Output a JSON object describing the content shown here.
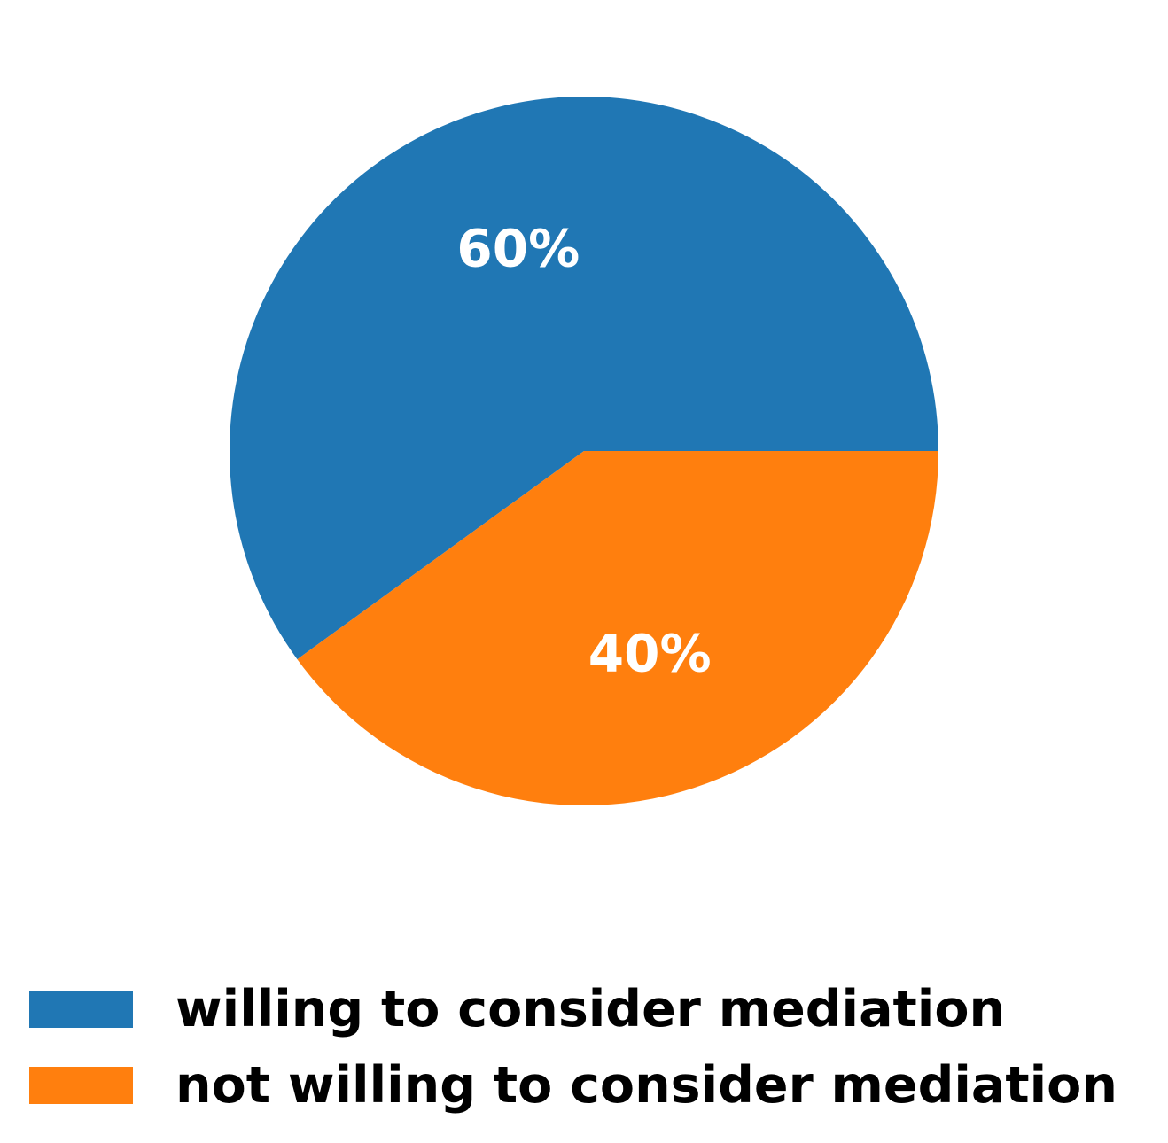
{
  "chart_data": {
    "type": "pie",
    "title": "",
    "categories": [
      "willing to consider mediation",
      "not willing to consider mediation"
    ],
    "values": [
      60,
      40
    ],
    "labels": [
      "60%",
      "40%"
    ],
    "colors": [
      "#2077b4",
      "#ff7f0e"
    ],
    "start_angle_deg": 0,
    "direction": "counterclockwise",
    "legend_position": "bottom-left"
  }
}
